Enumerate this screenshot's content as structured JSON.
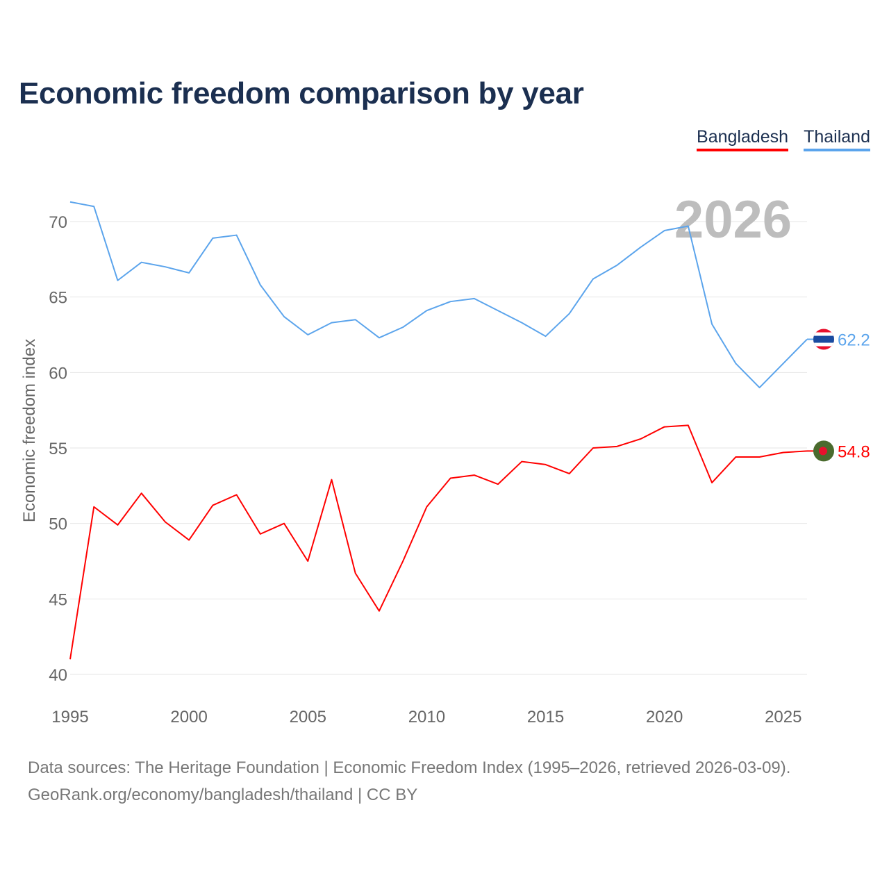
{
  "title": "Economic freedom comparison by year",
  "legend": [
    {
      "name": "Bangladesh",
      "color": "#ff0000"
    },
    {
      "name": "Thailand",
      "color": "#5ba4ec"
    }
  ],
  "watermark_year": "2026",
  "source_lines": [
    "Data sources: The Heritage Foundation | Economic Freedom Index (1995–2026, retrieved 2026-03-09).",
    "GeoRank.org/economy/bangladesh/thailand | CC BY"
  ],
  "chart_data": {
    "type": "line",
    "title": "Economic freedom comparison by year",
    "xlabel": "",
    "ylabel": "Economic freedom index",
    "xlim": [
      1995,
      2026
    ],
    "ylim": [
      40,
      72
    ],
    "x_ticks": [
      1995,
      2000,
      2005,
      2010,
      2015,
      2020,
      2025
    ],
    "y_ticks": [
      40,
      45,
      50,
      55,
      60,
      65,
      70
    ],
    "grid": true,
    "legend_position": "top-right",
    "x": [
      1995,
      1996,
      1997,
      1998,
      1999,
      2000,
      2001,
      2002,
      2003,
      2004,
      2005,
      2006,
      2007,
      2008,
      2009,
      2010,
      2011,
      2012,
      2013,
      2014,
      2015,
      2016,
      2017,
      2018,
      2019,
      2020,
      2021,
      2022,
      2023,
      2024,
      2025,
      2026
    ],
    "series": [
      {
        "name": "Thailand",
        "color": "#5ba4ec",
        "end_label": "62.2",
        "flag": "thailand",
        "values": [
          71.3,
          71.0,
          66.1,
          67.3,
          67.0,
          66.6,
          68.9,
          69.1,
          65.8,
          63.7,
          62.5,
          63.3,
          63.5,
          62.3,
          63.0,
          64.1,
          64.7,
          64.9,
          64.1,
          63.3,
          62.4,
          63.9,
          66.2,
          67.1,
          68.3,
          69.4,
          69.7,
          63.2,
          60.6,
          59.0,
          60.6,
          62.2
        ]
      },
      {
        "name": "Bangladesh",
        "color": "#ff0000",
        "end_label": "54.8",
        "flag": "bangladesh",
        "values": [
          41.0,
          51.1,
          49.9,
          52.0,
          50.1,
          48.9,
          51.2,
          51.9,
          49.3,
          50.0,
          47.5,
          52.9,
          46.7,
          44.2,
          47.5,
          51.1,
          53.0,
          53.2,
          52.6,
          54.1,
          53.9,
          53.3,
          55.0,
          55.1,
          55.6,
          56.4,
          56.5,
          52.7,
          54.4,
          54.4,
          54.7,
          54.8
        ]
      }
    ]
  }
}
